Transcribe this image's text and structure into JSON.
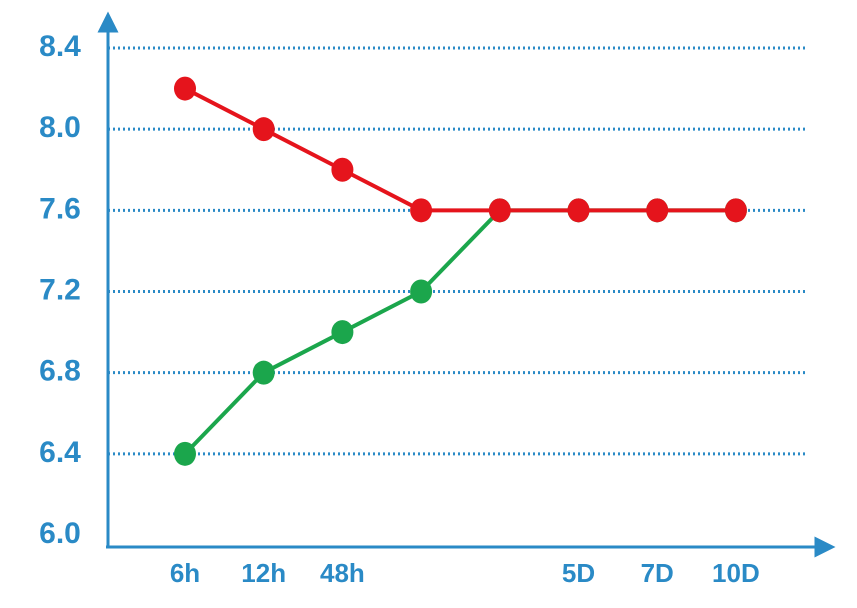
{
  "chart_data": {
    "type": "line",
    "categories": [
      "6h",
      "12h",
      "48h",
      null,
      null,
      "5D",
      "7D",
      "10D"
    ],
    "series": [
      {
        "color": "#1ba64c",
        "values": [
          6.4,
          6.8,
          7.0,
          7.2,
          7.6,
          7.6,
          7.6,
          7.6
        ]
      },
      {
        "color": "#e5141c",
        "values": [
          8.2,
          8.0,
          7.8,
          7.6,
          7.6,
          7.6,
          7.6,
          7.6
        ]
      }
    ],
    "ylim": [
      6.0,
      8.4
    ],
    "yticks": [
      {
        "value": 6,
        "label": "6.0"
      },
      6.4,
      6.8,
      7.2,
      7.6,
      {
        "value": 8,
        "label": "8.0"
      },
      8.4
    ],
    "grid": true,
    "axis_color": "#2a8ac6"
  }
}
